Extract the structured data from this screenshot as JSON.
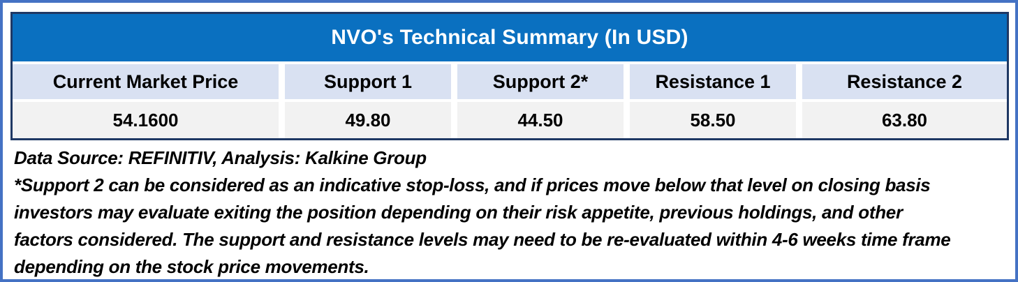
{
  "table": {
    "title": "NVO's Technical Summary (In USD)",
    "columns": [
      {
        "label": "Current Market Price",
        "value": "54.1600"
      },
      {
        "label": "Support 1",
        "value": "49.80"
      },
      {
        "label": "Support 2*",
        "value": "44.50"
      },
      {
        "label": "Resistance 1",
        "value": "58.50"
      },
      {
        "label": "Resistance 2",
        "value": "63.80"
      }
    ]
  },
  "notes": {
    "data_source": "Data Source: REFINITIV, Analysis: Kalkine Group",
    "footnote_lines": [
      "*Support 2 can be considered as an indicative stop-loss, and if prices move below that level on closing basis",
      "investors may evaluate exiting the position depending on their risk appetite, previous holdings, and other",
      "factors considered. The support and resistance levels may need to be re-evaluated within 4-6 weeks time frame",
      "depending on the stock price movements."
    ]
  },
  "colors": {
    "title_bar": "#0a70c0",
    "header_row": "#d9e1f2",
    "values_row": "#f2f2f2",
    "table_border": "#1f3864",
    "outer_border": "#4472c4"
  }
}
